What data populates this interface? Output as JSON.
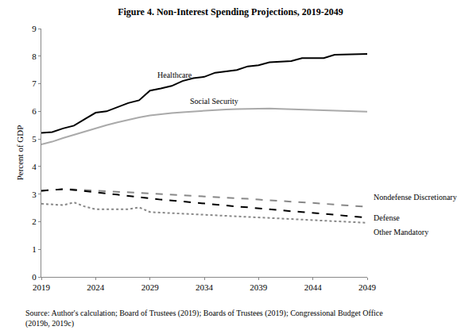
{
  "chart_data": {
    "type": "line",
    "title": "Figure 4. Non-Interest Spending Projections, 2019-2049",
    "y_label": "Percent of GDP",
    "caption": [
      "Source: Author's calculation; Board of Trustees (2019); Boards of Trustees (2019); Congressional Budget Office",
      "(2019b, 2019c)"
    ],
    "x": [
      2019,
      2020,
      2021,
      2022,
      2023,
      2024,
      2025,
      2026,
      2027,
      2028,
      2029,
      2030,
      2031,
      2032,
      2033,
      2034,
      2035,
      2036,
      2037,
      2038,
      2039,
      2040,
      2041,
      2042,
      2043,
      2044,
      2045,
      2046,
      2047,
      2048,
      2049
    ],
    "xlim": [
      2019,
      2049
    ],
    "xticks": [
      2019,
      2024,
      2029,
      2034,
      2039,
      2044,
      2049
    ],
    "ylim": [
      0,
      9
    ],
    "yticks": [
      0,
      1,
      2,
      3,
      4,
      5,
      6,
      7,
      8,
      9
    ],
    "grid": false,
    "series": [
      {
        "name": "Healthcare",
        "color": "#000000",
        "line_style": "solid",
        "values": [
          5.22,
          5.25,
          5.38,
          5.48,
          5.72,
          5.95,
          6.0,
          6.15,
          6.3,
          6.4,
          6.75,
          6.83,
          6.92,
          7.1,
          7.2,
          7.25,
          7.4,
          7.45,
          7.5,
          7.63,
          7.67,
          7.78,
          7.8,
          7.82,
          7.93,
          7.93,
          7.93,
          8.05,
          8.06,
          8.07,
          8.08
        ]
      },
      {
        "name": "Social Security",
        "color": "#aaaaaa",
        "line_style": "solid",
        "values": [
          4.8,
          4.9,
          5.03,
          5.15,
          5.27,
          5.38,
          5.5,
          5.6,
          5.7,
          5.78,
          5.85,
          5.9,
          5.94,
          5.97,
          6.0,
          6.03,
          6.05,
          6.07,
          6.08,
          6.09,
          6.1,
          6.1,
          6.09,
          6.08,
          6.07,
          6.06,
          6.05,
          6.04,
          6.02,
          6.0,
          5.99
        ]
      },
      {
        "name": "Nondefense Discretionary",
        "color": "#888888",
        "line_style": "dash",
        "values": [
          3.12,
          3.15,
          3.18,
          3.17,
          3.15,
          3.12,
          3.1,
          3.08,
          3.05,
          3.03,
          3.01,
          2.99,
          2.97,
          2.95,
          2.93,
          2.91,
          2.89,
          2.87,
          2.85,
          2.83,
          2.8,
          2.78,
          2.75,
          2.72,
          2.7,
          2.68,
          2.65,
          2.62,
          2.6,
          2.57,
          2.54
        ]
      },
      {
        "name": "Defense",
        "color": "#000000",
        "line_style": "dash",
        "values": [
          3.12,
          3.15,
          3.18,
          3.15,
          3.1,
          3.05,
          3.02,
          2.98,
          2.93,
          2.9,
          2.83,
          2.8,
          2.77,
          2.73,
          2.7,
          2.66,
          2.62,
          2.59,
          2.55,
          2.52,
          2.48,
          2.45,
          2.42,
          2.38,
          2.35,
          2.32,
          2.28,
          2.25,
          2.21,
          2.18,
          2.15
        ]
      },
      {
        "name": "Other Mandatory",
        "color": "#888888",
        "line_style": "dot",
        "values": [
          2.65,
          2.63,
          2.6,
          2.7,
          2.55,
          2.45,
          2.45,
          2.45,
          2.45,
          2.52,
          2.35,
          2.33,
          2.31,
          2.29,
          2.27,
          2.25,
          2.23,
          2.21,
          2.19,
          2.17,
          2.15,
          2.13,
          2.11,
          2.09,
          2.07,
          2.05,
          2.03,
          2.01,
          2.0,
          1.98,
          1.96
        ]
      }
    ]
  }
}
